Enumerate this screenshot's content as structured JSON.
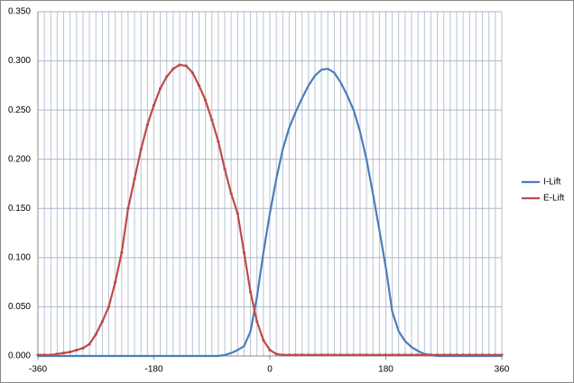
{
  "chart_data": {
    "type": "line",
    "x": [
      -360,
      -350,
      -340,
      -330,
      -320,
      -310,
      -300,
      -290,
      -280,
      -270,
      -260,
      -250,
      -240,
      -230,
      -220,
      -210,
      -200,
      -190,
      -180,
      -170,
      -160,
      -150,
      -140,
      -130,
      -120,
      -110,
      -100,
      -90,
      -80,
      -70,
      -60,
      -50,
      -40,
      -30,
      -20,
      -10,
      0,
      10,
      20,
      30,
      40,
      50,
      60,
      70,
      80,
      90,
      100,
      110,
      120,
      130,
      140,
      150,
      160,
      170,
      180,
      190,
      200,
      210,
      220,
      230,
      240,
      250,
      260,
      270,
      280,
      290,
      300,
      310,
      320,
      330,
      340,
      350,
      360
    ],
    "series": [
      {
        "name": "I-Lift",
        "color": "#4a7ebb",
        "markers": false,
        "values": [
          0,
          0,
          0,
          0,
          0,
          0,
          0,
          0,
          0,
          0,
          0,
          0,
          0,
          0,
          0,
          0,
          0,
          0,
          0,
          0,
          0,
          0,
          0,
          0,
          0,
          0,
          0,
          0,
          0,
          0.001,
          0.003,
          0.006,
          0.01,
          0.025,
          0.06,
          0.105,
          0.145,
          0.18,
          0.21,
          0.232,
          0.248,
          0.262,
          0.275,
          0.285,
          0.291,
          0.292,
          0.288,
          0.278,
          0.265,
          0.25,
          0.228,
          0.2,
          0.165,
          0.128,
          0.09,
          0.045,
          0.025,
          0.015,
          0.009,
          0.005,
          0.002,
          0.001,
          0,
          0,
          0,
          0,
          0,
          0,
          0,
          0,
          0,
          0,
          0
        ]
      },
      {
        "name": "E-Lift",
        "color": "#be4b48",
        "markers": true,
        "values": [
          0.001,
          0.001,
          0.001,
          0.002,
          0.003,
          0.004,
          0.006,
          0.008,
          0.012,
          0.022,
          0.035,
          0.05,
          0.075,
          0.105,
          0.15,
          0.18,
          0.21,
          0.235,
          0.255,
          0.272,
          0.284,
          0.292,
          0.296,
          0.295,
          0.288,
          0.275,
          0.26,
          0.24,
          0.218,
          0.19,
          0.165,
          0.145,
          0.105,
          0.065,
          0.035,
          0.016,
          0.006,
          0.002,
          0.001,
          0.001,
          0.001,
          0.001,
          0.001,
          0.001,
          0.001,
          0.001,
          0.001,
          0.001,
          0.001,
          0.001,
          0.001,
          0.001,
          0.001,
          0.001,
          0.001,
          0.001,
          0.001,
          0.001,
          0.001,
          0.001,
          0.001,
          0.001,
          0.001,
          0.001,
          0.001,
          0.001,
          0.001,
          0.001,
          0.001,
          0.001,
          0.001,
          0.001,
          0.001
        ]
      }
    ],
    "xlim": [
      -360,
      360
    ],
    "xticks": [
      -360,
      -180,
      0,
      180,
      360
    ],
    "x_minor_ticks": [
      -360,
      -350,
      -340,
      -330,
      -320,
      -310,
      -300,
      -290,
      -280,
      -270,
      -260,
      -250,
      -240,
      -230,
      -220,
      -210,
      -200,
      -190,
      -180,
      -170,
      -160,
      -150,
      -140,
      -130,
      -120,
      -110,
      -100,
      -90,
      -80,
      -70,
      -60,
      -50,
      -40,
      -30,
      -20,
      -10,
      0,
      10,
      20,
      30,
      40,
      50,
      60,
      70,
      80,
      90,
      100,
      110,
      120,
      130,
      140,
      150,
      160,
      170,
      180,
      190,
      200,
      210,
      220,
      230,
      240,
      250,
      260,
      270,
      280,
      290,
      300,
      310,
      320,
      330,
      340,
      350,
      360
    ],
    "ylim": [
      0,
      0.35
    ],
    "yticks": [
      {
        "value": 0,
        "label": "0.000"
      },
      {
        "value": 0.05,
        "label": "0.050"
      },
      {
        "value": 0.1,
        "label": "0.100"
      },
      {
        "value": 0.15,
        "label": "0.150"
      },
      {
        "value": 0.2,
        "label": "0.200"
      },
      {
        "value": 0.25,
        "label": "0.250"
      },
      {
        "value": 0.3,
        "label": "0.300"
      },
      {
        "value": 0.35,
        "label": "0.350"
      }
    ],
    "grid": true,
    "legend": "right"
  }
}
